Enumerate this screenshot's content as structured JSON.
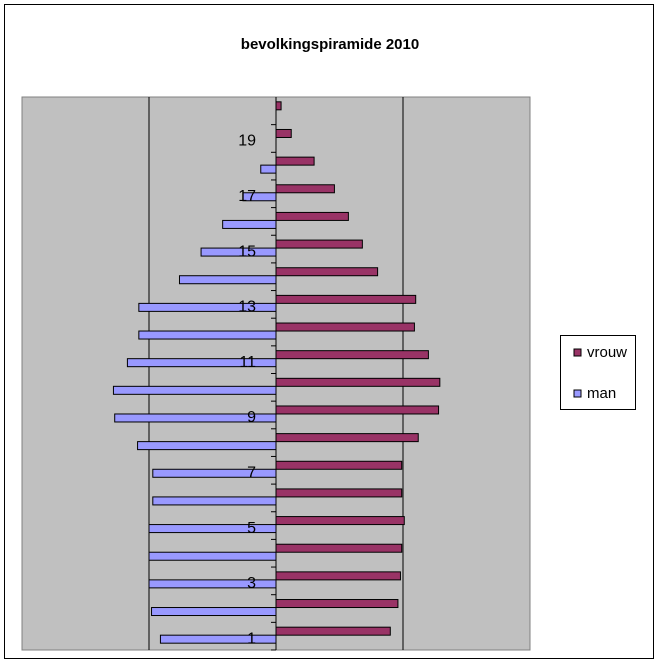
{
  "chart_data": {
    "type": "bar",
    "orientation": "horizontal",
    "title": "bevolkingspiramide 2010",
    "categories": [
      1,
      null,
      3,
      null,
      5,
      null,
      7,
      null,
      9,
      null,
      11,
      null,
      13,
      null,
      15,
      null,
      17,
      null,
      19,
      null
    ],
    "series": [
      {
        "name": "vrouw",
        "color": "#993366",
        "values": [
          0.9,
          0.96,
          0.98,
          0.99,
          1.01,
          0.99,
          0.99,
          1.12,
          1.28,
          1.29,
          1.2,
          1.09,
          1.1,
          0.8,
          0.68,
          0.57,
          0.46,
          0.3,
          0.12,
          0.04
        ]
      },
      {
        "name": "man",
        "color": "#9999ff",
        "values": [
          -0.91,
          -0.98,
          -1.0,
          -1.0,
          -1.0,
          -0.97,
          -0.97,
          -1.09,
          -1.27,
          -1.28,
          -1.17,
          -1.08,
          -1.08,
          -0.76,
          -0.59,
          -0.42,
          -0.26,
          -0.12,
          0,
          0
        ]
      }
    ],
    "xlim": [
      -2,
      2
    ],
    "xticks": [
      -1,
      1
    ],
    "grid": true,
    "legend": "right"
  }
}
